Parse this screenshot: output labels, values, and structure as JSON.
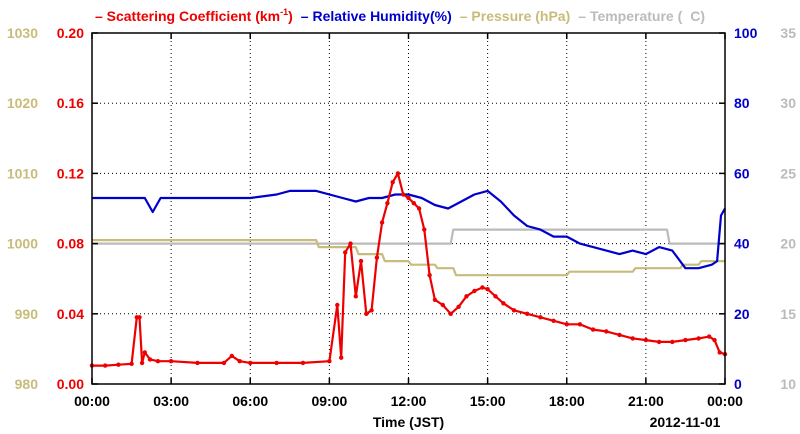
{
  "chart_data": {
    "type": "line",
    "xlabel": "Time (JST)",
    "date_label": "2012-11-01",
    "x_ticks": [
      "00:00",
      "03:00",
      "06:00",
      "09:00",
      "12:00",
      "15:00",
      "18:00",
      "21:00",
      "00:00"
    ],
    "x_range_hours": [
      0,
      24
    ],
    "grid": true,
    "legend": {
      "placement": "top",
      "items": [
        {
          "text": "Scattering Coefficient (km",
          "sup": "-1",
          "suffix": ")",
          "color": "#ee0000"
        },
        {
          "text": "Relative Humidity(%)",
          "color": "#0000cc"
        },
        {
          "text": "Pressure (hPa)",
          "color": "#c8bc7a"
        },
        {
          "text": "Temperature (",
          "mid": "C",
          "suffix": ")",
          "color": "#bbbbbb"
        }
      ]
    },
    "axes": {
      "pressure": {
        "side": "left-outer",
        "color": "#c8bc7a",
        "range": [
          980,
          1030
        ],
        "ticks": [
          "980",
          "990",
          "1000",
          "1010",
          "1020",
          "1030"
        ]
      },
      "scattering": {
        "side": "left-inner",
        "color": "#ee0000",
        "range": [
          0,
          0.2
        ],
        "ticks": [
          "0.00",
          "0.04",
          "0.08",
          "0.12",
          "0.16",
          "0.20"
        ]
      },
      "humidity": {
        "side": "right-inner",
        "color": "#0000cc",
        "range": [
          0,
          100
        ],
        "ticks": [
          "0",
          "20",
          "40",
          "60",
          "80",
          "100"
        ]
      },
      "temperature": {
        "side": "right-outer",
        "color": "#bbbbbb",
        "range": [
          10,
          35
        ],
        "ticks": [
          "10",
          "15",
          "20",
          "25",
          "30",
          "35"
        ]
      }
    },
    "series": [
      {
        "name": "Scattering Coefficient",
        "axis": "scattering",
        "color": "#ee0000",
        "marker": "dot",
        "x": [
          0,
          0.5,
          1.0,
          1.5,
          1.7,
          1.8,
          1.9,
          2.0,
          2.2,
          2.5,
          3.0,
          4.0,
          5.0,
          5.3,
          5.6,
          6.0,
          7.0,
          8.0,
          9.0,
          9.3,
          9.45,
          9.6,
          9.8,
          10.0,
          10.2,
          10.4,
          10.6,
          10.8,
          11.0,
          11.2,
          11.4,
          11.6,
          11.8,
          12.0,
          12.2,
          12.4,
          12.6,
          12.8,
          13.0,
          13.3,
          13.6,
          13.9,
          14.2,
          14.5,
          14.8,
          15.0,
          15.3,
          15.6,
          16.0,
          16.5,
          17.0,
          17.5,
          18.0,
          18.5,
          19.0,
          19.5,
          20.0,
          20.5,
          21.0,
          21.5,
          22.0,
          22.5,
          23.0,
          23.4,
          23.6,
          23.8,
          24.0
        ],
        "y": [
          0.0105,
          0.0105,
          0.011,
          0.0115,
          0.038,
          0.038,
          0.012,
          0.018,
          0.014,
          0.013,
          0.013,
          0.012,
          0.012,
          0.016,
          0.013,
          0.012,
          0.012,
          0.012,
          0.013,
          0.045,
          0.015,
          0.075,
          0.08,
          0.05,
          0.07,
          0.04,
          0.042,
          0.072,
          0.092,
          0.103,
          0.115,
          0.12,
          0.108,
          0.106,
          0.103,
          0.1,
          0.088,
          0.062,
          0.048,
          0.045,
          0.04,
          0.044,
          0.05,
          0.053,
          0.055,
          0.054,
          0.05,
          0.046,
          0.042,
          0.04,
          0.038,
          0.036,
          0.034,
          0.034,
          0.031,
          0.03,
          0.028,
          0.026,
          0.025,
          0.024,
          0.024,
          0.025,
          0.026,
          0.027,
          0.025,
          0.018,
          0.017
        ]
      },
      {
        "name": "Relative Humidity",
        "axis": "humidity",
        "color": "#0000cc",
        "marker": "none",
        "x": [
          0,
          1.0,
          2.0,
          2.3,
          2.6,
          3.0,
          6.0,
          7.0,
          7.5,
          8.5,
          9.5,
          10.0,
          10.5,
          11.0,
          11.5,
          12.0,
          12.5,
          13.0,
          13.5,
          14.0,
          14.5,
          15.0,
          15.5,
          16.0,
          16.5,
          17.0,
          17.5,
          18.0,
          18.5,
          19.0,
          19.5,
          20.0,
          20.5,
          21.0,
          21.5,
          22.0,
          22.5,
          23.0,
          23.5,
          23.7,
          23.85,
          24.0
        ],
        "y": [
          53,
          53,
          53,
          49,
          53,
          53,
          53,
          54,
          55,
          55,
          53,
          52,
          53,
          53,
          54,
          54,
          53,
          51,
          50,
          52,
          54,
          55,
          52,
          48,
          45,
          44,
          42,
          42,
          40,
          39,
          38,
          37,
          38,
          37,
          39,
          38,
          33,
          33,
          34,
          35,
          48,
          50
        ]
      },
      {
        "name": "Pressure",
        "axis": "pressure",
        "color": "#c8bc7a",
        "marker": "none",
        "x": [
          0,
          8.5,
          8.6,
          10.0,
          10.1,
          11.0,
          11.1,
          12.0,
          12.1,
          13.0,
          13.1,
          13.7,
          13.8,
          18.0,
          18.1,
          20.5,
          20.6,
          22.3,
          22.4,
          23.0,
          23.1,
          24.0
        ],
        "y": [
          1000.5,
          1000.5,
          999.5,
          999.5,
          998.5,
          998.5,
          997.5,
          997.5,
          997,
          997,
          996.5,
          996.5,
          995.5,
          995.5,
          996,
          996,
          996.5,
          996.5,
          997,
          997,
          997.5,
          997.5
        ]
      },
      {
        "name": "Temperature",
        "axis": "temperature",
        "color": "#bbbbbb",
        "marker": "none",
        "x": [
          0,
          13.6,
          13.7,
          21.8,
          21.9,
          24.0
        ],
        "y": [
          20,
          20,
          21,
          21,
          20,
          20
        ]
      }
    ]
  }
}
